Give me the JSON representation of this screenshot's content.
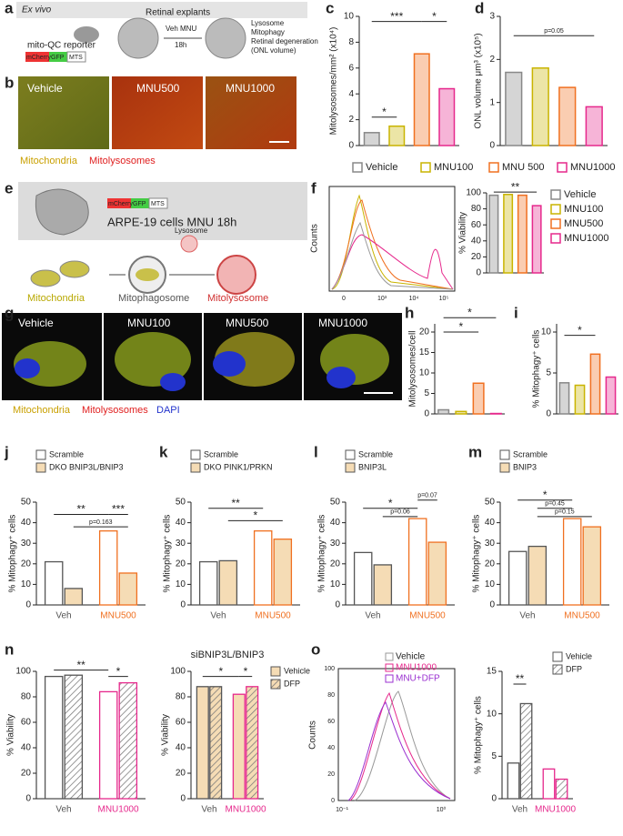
{
  "panel_labels": [
    "a",
    "b",
    "c",
    "d",
    "e",
    "f",
    "g",
    "h",
    "i",
    "j",
    "k",
    "l",
    "m",
    "n",
    "o"
  ],
  "panel_a": {
    "setting": "Ex vivo",
    "explants": "Retinal explants",
    "reporter": "mito-QC reporter",
    "construct": [
      "mCherry",
      "GFP",
      "MTS"
    ],
    "treatment": [
      "Veh MNU",
      "18h"
    ],
    "readouts": [
      "Lysosome",
      "Mitophagy",
      "Retinal degeneration",
      "(ONL volume)"
    ]
  },
  "panel_b": {
    "conditions": [
      "Vehicle",
      "MNU500",
      "MNU1000"
    ],
    "legend": [
      "Mitochondria",
      "Mitolysosomes"
    ]
  },
  "panel_e": {
    "construct": [
      "mCherry",
      "GFP",
      "MTS"
    ],
    "cells": "ARPE-19 cells MNU 18h",
    "lysosome": "Lysosome",
    "stages": [
      "Mitochondria",
      "Mitophagosome",
      "Mitolysosome"
    ]
  },
  "panel_f_histogram": {
    "y_label": "Counts",
    "x_ticks": [
      "0",
      "10³",
      "10⁴",
      "10⁵"
    ]
  },
  "panel_g": {
    "conditions": [
      "Vehicle",
      "MNU100",
      "MNU500",
      "MNU1000"
    ],
    "legend": [
      "Mitochondria",
      "Mitolysosomes",
      "DAPI"
    ]
  },
  "panel_o_histogram": {
    "y_label": "Counts",
    "y_ticks": [
      "0",
      "20",
      "40",
      "60",
      "80",
      "100"
    ],
    "x_ticks": [
      "10⁻¹",
      "10⁰"
    ],
    "legend": [
      "Vehicle",
      "MNU1000",
      "MNU+DFP"
    ]
  },
  "chart_data": [
    {
      "type": "bar",
      "y_label": "Mitolysosomes/mm² (x10⁴)",
      "categories": [
        "Vehicle",
        "MNU100",
        "MNU 500",
        "MNU1000"
      ],
      "colors": [
        "#888888",
        "#c9b400",
        "#f07020",
        "#e6288c"
      ],
      "values": [
        1.0,
        1.5,
        7.1,
        4.4
      ],
      "ylim": [
        0,
        10
      ],
      "yticks": [
        0,
        2,
        4,
        6,
        8,
        10
      ],
      "annotations": [
        "*",
        "***",
        "*"
      ]
    },
    {
      "type": "bar",
      "y_label": "ONL volume μm³ (x10⁵)",
      "colors": [
        "#888888",
        "#c9b400",
        "#f07020",
        "#e6288c"
      ],
      "values": [
        1.7,
        1.8,
        1.35,
        0.9
      ],
      "ylim": [
        0,
        3
      ],
      "yticks": [
        0,
        1,
        2,
        3
      ],
      "annotations": [
        "p=0.05"
      ]
    },
    {
      "type": "bar",
      "y_label": "% Viability",
      "categories": [
        "Vehicle",
        "MNU100",
        "MNU500",
        "MNU1000"
      ],
      "colors": [
        "#888888",
        "#c9b400",
        "#f07020",
        "#e6288c"
      ],
      "values": [
        97,
        98,
        97,
        84
      ],
      "ylim": [
        0,
        100
      ],
      "yticks": [
        0,
        20,
        40,
        60,
        80,
        100
      ],
      "annotations": [
        "**"
      ]
    },
    {
      "type": "bar",
      "y_label": "Mitolysosomes/cell",
      "colors": [
        "#888888",
        "#c9b400",
        "#f07020",
        "#e6288c"
      ],
      "values": [
        1.0,
        0.6,
        7.5,
        0.1
      ],
      "ylim": [
        0,
        22
      ],
      "yticks": [
        0,
        5,
        10,
        15,
        20
      ],
      "annotations": [
        "*",
        "*"
      ]
    },
    {
      "type": "bar",
      "y_label": "% Mitophagy⁺ cells",
      "colors": [
        "#888888",
        "#c9b400",
        "#f07020",
        "#e6288c"
      ],
      "values": [
        3.8,
        3.5,
        7.3,
        4.5
      ],
      "ylim": [
        0,
        11
      ],
      "yticks": [
        0,
        5,
        10
      ],
      "annotations": [
        "*"
      ]
    },
    {
      "type": "grouped_bar",
      "y_label": "% Mitophagy⁺ cells",
      "categories": [
        "Veh",
        "MNU500"
      ],
      "edge_colors": [
        "#555555",
        "#f07020"
      ],
      "series": [
        {
          "name": "Scramble",
          "color": "#ffffff",
          "values": [
            21,
            36
          ]
        },
        {
          "name": "DKO BNIP3L/BNIP3",
          "color": "#f5dcb5",
          "values": [
            8,
            15.5
          ]
        }
      ],
      "ylim": [
        0,
        50
      ],
      "yticks": [
        0,
        10,
        20,
        30,
        40,
        50
      ],
      "annotations": [
        "**",
        "***",
        "p=0.163"
      ]
    },
    {
      "type": "grouped_bar",
      "y_label": "% Mitophagy⁺ cells",
      "categories": [
        "Veh",
        "MNU500"
      ],
      "edge_colors": [
        "#555555",
        "#f07020"
      ],
      "series": [
        {
          "name": "Scramble",
          "color": "#ffffff",
          "values": [
            21,
            36
          ]
        },
        {
          "name": "DKO PINK1/PRKN",
          "color": "#f5dcb5",
          "values": [
            21.5,
            32
          ]
        }
      ],
      "ylim": [
        0,
        50
      ],
      "yticks": [
        0,
        10,
        20,
        30,
        40,
        50
      ],
      "annotations": [
        "**",
        "*"
      ]
    },
    {
      "type": "grouped_bar",
      "y_label": "% Mitophagy⁺ cells",
      "categories": [
        "Veh",
        "MNU500"
      ],
      "edge_colors": [
        "#555555",
        "#f07020"
      ],
      "series": [
        {
          "name": "Scramble",
          "color": "#ffffff",
          "values": [
            25.5,
            42
          ]
        },
        {
          "name": "BNIP3L",
          "color": "#f5dcb5",
          "values": [
            19.5,
            30.5
          ]
        }
      ],
      "ylim": [
        0,
        50
      ],
      "yticks": [
        0,
        10,
        20,
        30,
        40,
        50
      ],
      "annotations": [
        "*",
        "p=0.07",
        "p=0.06"
      ]
    },
    {
      "type": "grouped_bar",
      "y_label": "% Mitophagy⁺ cells",
      "categories": [
        "Veh",
        "MNU500"
      ],
      "edge_colors": [
        "#555555",
        "#f07020"
      ],
      "series": [
        {
          "name": "Scramble",
          "color": "#ffffff",
          "values": [
            26,
            42
          ]
        },
        {
          "name": "BNIP3",
          "color": "#f5dcb5",
          "values": [
            28.5,
            38
          ]
        }
      ],
      "ylim": [
        0,
        50
      ],
      "yticks": [
        0,
        10,
        20,
        30,
        40,
        50
      ],
      "annotations": [
        "*",
        "p=0.45",
        "p=0.15"
      ]
    },
    {
      "type": "grouped_bar",
      "y_label": "% Viability",
      "categories": [
        "Veh",
        "MNU1000"
      ],
      "edge_colors": [
        "#555555",
        "#e6288c"
      ],
      "series": [
        {
          "values": [
            96,
            84
          ],
          "color": "#ffffff"
        },
        {
          "values": [
            97,
            91
          ],
          "color": "#ffffff",
          "hatch": true
        }
      ],
      "ylim": [
        0,
        100
      ],
      "yticks": [
        0,
        20,
        40,
        60,
        80,
        100
      ],
      "annotations": [
        "**",
        "*"
      ]
    },
    {
      "type": "grouped_bar",
      "title": "siBNIP3L/BNIP3",
      "y_label": "% Viability",
      "categories": [
        "Veh",
        "MNU1000"
      ],
      "edge_colors": [
        "#555555",
        "#e6288c"
      ],
      "series": [
        {
          "name": "Vehicle",
          "color": "#f5dcb5",
          "values": [
            88,
            82
          ]
        },
        {
          "name": "DFP",
          "color": "#f5dcb5",
          "hatch": true,
          "values": [
            88,
            88
          ]
        }
      ],
      "ylim": [
        0,
        100
      ],
      "yticks": [
        0,
        20,
        40,
        60,
        80,
        100
      ],
      "annotations": [
        "*",
        "*"
      ]
    },
    {
      "type": "grouped_bar",
      "y_label": "% Mitophagy⁺ cells",
      "categories": [
        "Veh",
        "MNU1000"
      ],
      "edge_colors": [
        "#555555",
        "#e6288c"
      ],
      "series": [
        {
          "name": "Vehicle",
          "color": "#ffffff",
          "values": [
            4.2,
            3.5
          ]
        },
        {
          "name": "DFP",
          "color": "#ffffff",
          "hatch": true,
          "values": [
            11.2,
            2.3
          ]
        }
      ],
      "ylim": [
        0,
        15
      ],
      "yticks": [
        0,
        5,
        10,
        15
      ],
      "annotations": [
        "**"
      ]
    }
  ]
}
